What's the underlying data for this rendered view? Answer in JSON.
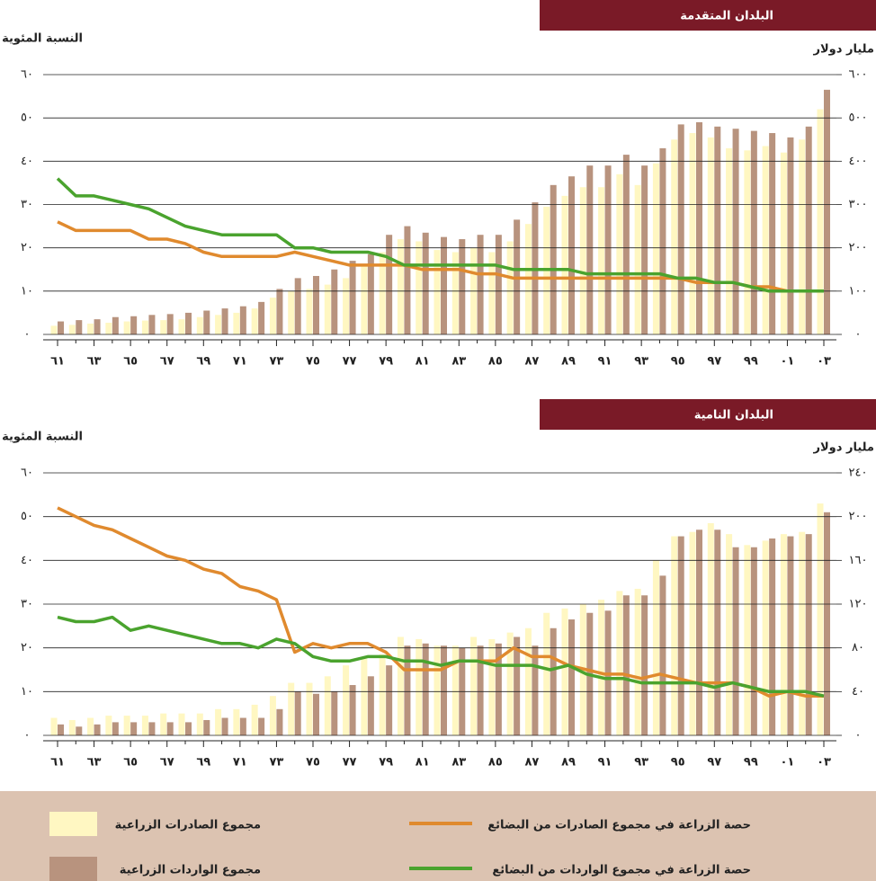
{
  "chart_data": [
    {
      "type": "bar_line",
      "title": "البلدان المتقدمة",
      "y_label": "النسبة المئوية",
      "y2_label": "مليار دولار",
      "categories": [
        "٦١",
        null,
        "٦٣",
        null,
        "٦٥",
        null,
        "٦٧",
        null,
        "٦٩",
        null,
        "٧١",
        null,
        "٧٣",
        null,
        "٧٥",
        null,
        "٧٧",
        null,
        "٧٩",
        null,
        "٨١",
        null,
        "٨٣",
        null,
        "٨٥",
        null,
        "٨٧",
        null,
        "٨٩",
        null,
        "٩١",
        null,
        "٩٣",
        null,
        "٩٥",
        null,
        "٩٧",
        null,
        "٩٩",
        null,
        "٠١",
        null,
        "٠٣"
      ],
      "ylim": [
        0,
        60
      ],
      "yticks": [
        {
          "value": 0,
          "label": "٠"
        },
        {
          "value": 10,
          "label": "١٠"
        },
        {
          "value": 20,
          "label": "٢٠"
        },
        {
          "value": 30,
          "label": "٣٠"
        },
        {
          "value": 40,
          "label": "٤٠"
        },
        {
          "value": 50,
          "label": "٥٠"
        },
        {
          "value": 60,
          "label": "٦٠"
        }
      ],
      "y2lim": [
        0,
        600
      ],
      "y2ticks": [
        {
          "value": 0,
          "label": "٠"
        },
        {
          "value": 100,
          "label": "١٠٠"
        },
        {
          "value": 200,
          "label": "٢٠٠"
        },
        {
          "value": 300,
          "label": "٣٠٠"
        },
        {
          "value": 400,
          "label": "٤٠٠"
        },
        {
          "value": 500,
          "label": "٥٠٠"
        },
        {
          "value": 600,
          "label": "٦٠٠"
        }
      ],
      "grid": true,
      "series": [
        {
          "name": "مجموع الصادرات الزراعية",
          "kind": "bar",
          "axis": "y2",
          "color": "#fff7c2",
          "values": [
            20,
            22,
            25,
            27,
            30,
            32,
            33,
            35,
            40,
            45,
            50,
            60,
            85,
            100,
            105,
            115,
            130,
            160,
            190,
            220,
            215,
            195,
            190,
            200,
            190,
            215,
            255,
            295,
            320,
            340,
            340,
            370,
            345,
            395,
            450,
            465,
            455,
            430,
            425,
            435,
            420,
            450,
            520
          ]
        },
        {
          "name": "مجموع الواردات الزراعية",
          "kind": "bar",
          "axis": "y2",
          "color": "#b8937e",
          "values": [
            30,
            33,
            35,
            40,
            42,
            45,
            47,
            50,
            55,
            60,
            65,
            75,
            105,
            130,
            135,
            150,
            170,
            185,
            230,
            250,
            235,
            225,
            220,
            230,
            230,
            265,
            305,
            345,
            365,
            390,
            390,
            415,
            390,
            430,
            485,
            490,
            480,
            475,
            470,
            465,
            455,
            480,
            565
          ]
        },
        {
          "name": "حصة الزراعة في مجموع الصادرات من البضائع",
          "kind": "line",
          "color": "#e08a2e",
          "values": [
            26,
            24,
            24,
            24,
            24,
            22,
            22,
            21,
            19,
            18,
            18,
            18,
            18,
            19,
            18,
            17,
            16,
            16,
            16,
            16,
            15,
            15,
            15,
            14,
            14,
            13,
            13,
            13,
            13,
            13,
            13,
            13,
            13,
            13,
            13,
            12,
            12,
            12,
            11,
            11,
            10,
            10,
            10
          ]
        },
        {
          "name": "حصة الزراعة في مجموع الواردات من البضائع",
          "kind": "line",
          "color": "#4aa32e",
          "values": [
            36,
            32,
            32,
            31,
            30,
            29,
            27,
            25,
            24,
            23,
            23,
            23,
            23,
            20,
            20,
            19,
            19,
            19,
            18,
            16,
            16,
            16,
            16,
            16,
            16,
            15,
            15,
            15,
            15,
            14,
            14,
            14,
            14,
            14,
            13,
            13,
            12,
            12,
            11,
            10,
            10,
            10,
            10
          ]
        }
      ]
    },
    {
      "type": "bar_line",
      "title": "البلدان النامية",
      "y_label": "النسبة المئوية",
      "y2_label": "مليار دولار",
      "categories": [
        "٦١",
        null,
        "٦٣",
        null,
        "٦٥",
        null,
        "٦٧",
        null,
        "٦٩",
        null,
        "٧١",
        null,
        "٧٣",
        null,
        "٧٥",
        null,
        "٧٧",
        null,
        "٧٩",
        null,
        "٨١",
        null,
        "٨٣",
        null,
        "٨٥",
        null,
        "٨٧",
        null,
        "٨٩",
        null,
        "٩١",
        null,
        "٩٣",
        null,
        "٩٥",
        null,
        "٩٧",
        null,
        "٩٩",
        null,
        "٠١",
        null,
        "٠٣"
      ],
      "ylim": [
        0,
        60
      ],
      "yticks": [
        {
          "value": 0,
          "label": "٠"
        },
        {
          "value": 10,
          "label": "١٠"
        },
        {
          "value": 20,
          "label": "٢٠"
        },
        {
          "value": 30,
          "label": "٣٠"
        },
        {
          "value": 40,
          "label": "٤٠"
        },
        {
          "value": 50,
          "label": "٥٠"
        },
        {
          "value": 60,
          "label": "٦٠"
        }
      ],
      "y2lim": [
        0,
        240
      ],
      "y2ticks": [
        {
          "value": 0,
          "label": "٠"
        },
        {
          "value": 40,
          "label": "٤٠"
        },
        {
          "value": 80,
          "label": "٨٠"
        },
        {
          "value": 120,
          "label": "١٢٠"
        },
        {
          "value": 160,
          "label": "١٦٠"
        },
        {
          "value": 200,
          "label": "٢٠٠"
        },
        {
          "value": 240,
          "label": "٢٤٠"
        }
      ],
      "grid": true,
      "series": [
        {
          "kind": "bar",
          "axis": "y2",
          "color": "#fff7c2",
          "values": [
            16,
            14,
            16,
            18,
            18,
            18,
            20,
            20,
            20,
            24,
            24,
            28,
            36,
            48,
            48,
            54,
            64,
            70,
            74,
            90,
            88,
            82,
            82,
            90,
            88,
            94,
            98,
            112,
            116,
            120,
            124,
            132,
            134,
            160,
            182,
            186,
            194,
            184,
            174,
            178,
            184,
            186,
            212
          ]
        },
        {
          "kind": "bar",
          "axis": "y2",
          "color": "#b8937e",
          "values": [
            10,
            8,
            10,
            12,
            12,
            12,
            12,
            12,
            14,
            16,
            16,
            16,
            24,
            40,
            38,
            40,
            46,
            54,
            64,
            82,
            84,
            82,
            80,
            82,
            84,
            90,
            82,
            98,
            106,
            112,
            114,
            128,
            128,
            146,
            182,
            188,
            188,
            172,
            172,
            180,
            182,
            184,
            204
          ]
        },
        {
          "kind": "line",
          "color": "#e08a2e",
          "values": [
            52,
            50,
            48,
            47,
            45,
            43,
            41,
            40,
            38,
            37,
            34,
            33,
            31,
            19,
            21,
            20,
            21,
            21,
            19,
            15,
            15,
            15,
            17,
            17,
            17,
            20,
            18,
            18,
            16,
            15,
            14,
            14,
            13,
            14,
            13,
            12,
            12,
            12,
            11,
            9,
            10,
            9,
            9
          ]
        },
        {
          "kind": "line",
          "color": "#4aa32e",
          "values": [
            27,
            26,
            26,
            27,
            24,
            25,
            24,
            23,
            22,
            21,
            21,
            20,
            22,
            21,
            18,
            17,
            17,
            18,
            18,
            17,
            17,
            16,
            17,
            17,
            16,
            16,
            16,
            15,
            16,
            14,
            13,
            13,
            12,
            12,
            12,
            12,
            11,
            12,
            11,
            10,
            10,
            10,
            9
          ]
        }
      ]
    }
  ]
}
